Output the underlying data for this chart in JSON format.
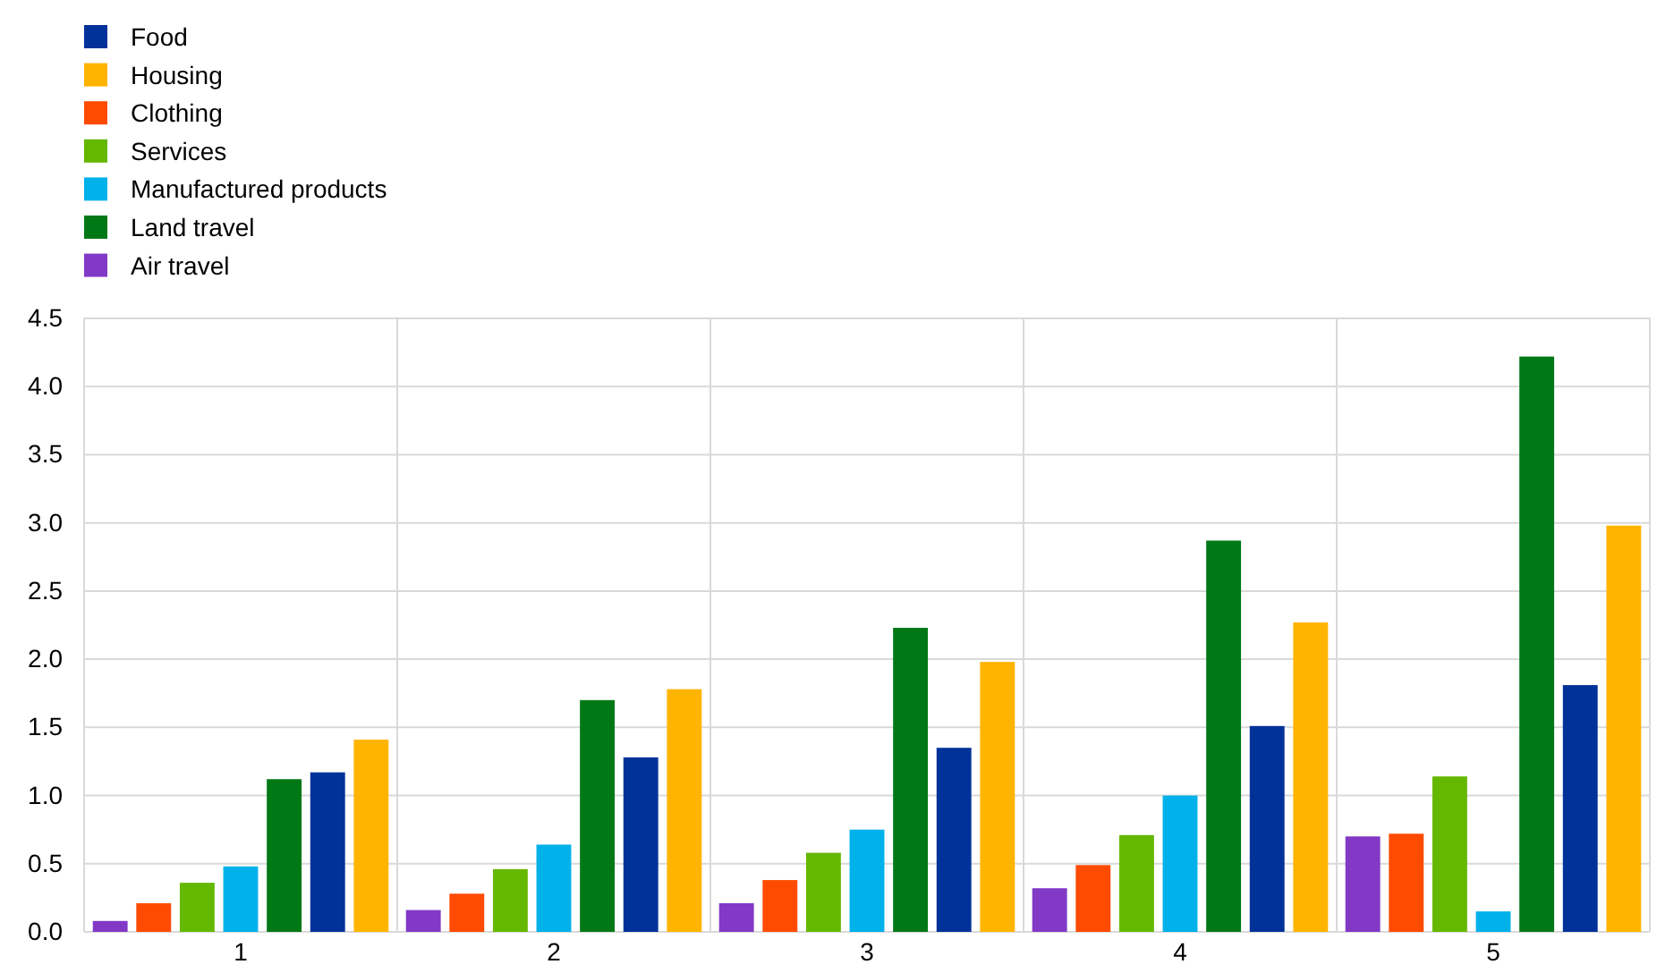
{
  "chart_data": {
    "type": "bar",
    "categories": [
      "1",
      "2",
      "3",
      "4",
      "5"
    ],
    "series": [
      {
        "name": "Air travel",
        "color": "#8139c6",
        "values": [
          0.08,
          0.16,
          0.21,
          0.32,
          0.7
        ]
      },
      {
        "name": "Clothing",
        "color": "#ff4b00",
        "values": [
          0.21,
          0.28,
          0.38,
          0.49,
          0.72
        ]
      },
      {
        "name": "Services",
        "color": "#65b800",
        "values": [
          0.36,
          0.46,
          0.58,
          0.71,
          1.14
        ]
      },
      {
        "name": "Manufactured products",
        "color": "#00b1ea",
        "values": [
          0.48,
          0.64,
          0.75,
          1.0,
          0.15
        ]
      },
      {
        "name": "Land travel",
        "color": "#007816",
        "values": [
          1.12,
          1.7,
          2.23,
          2.87,
          4.22
        ]
      },
      {
        "name": "Food",
        "color": "#003299",
        "values": [
          1.17,
          1.28,
          1.35,
          1.51,
          1.81
        ]
      },
      {
        "name": "Housing",
        "color": "#ffb400",
        "values": [
          1.41,
          1.78,
          1.98,
          2.27,
          2.98
        ]
      }
    ],
    "ylim": [
      0,
      4.5
    ],
    "yticks": [
      {
        "value": 0,
        "label": "0.0"
      },
      {
        "value": 0.5,
        "label": "0.5"
      },
      {
        "value": 1,
        "label": "1.0"
      },
      {
        "value": 1.5,
        "label": "1.5"
      },
      {
        "value": 2,
        "label": "2.0"
      },
      {
        "value": 2.5,
        "label": "2.5"
      },
      {
        "value": 3,
        "label": "3.0"
      },
      {
        "value": 3.5,
        "label": "3.5"
      },
      {
        "value": 4,
        "label": "4.0"
      },
      {
        "value": 4.5,
        "label": "4.5"
      }
    ],
    "grid": true,
    "legend": "top left"
  }
}
